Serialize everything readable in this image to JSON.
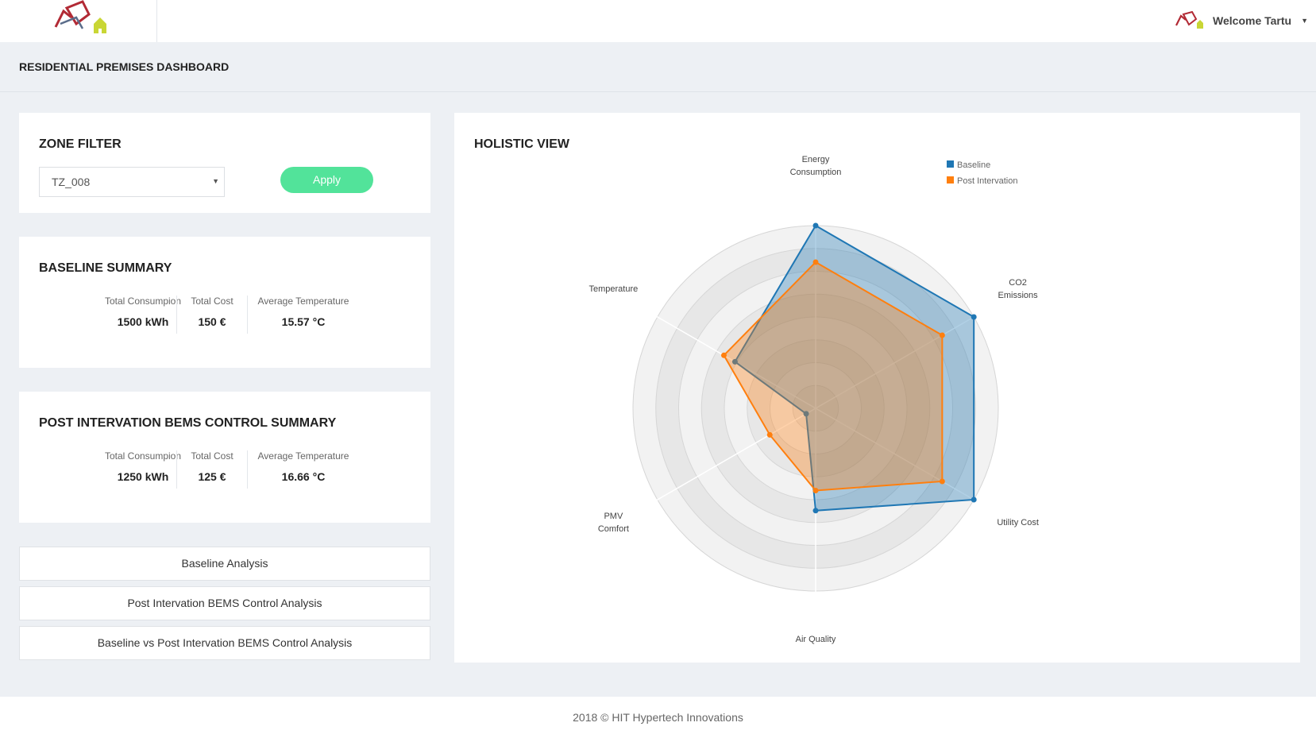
{
  "header": {
    "logo_alt": "logo",
    "user_greeting": "Welcome Tartu"
  },
  "page": {
    "title": "RESIDENTIAL PREMISES DASHBOARD"
  },
  "zone_filter": {
    "title": "ZONE FILTER",
    "selected_zone": "TZ_008",
    "apply_label": "Apply"
  },
  "baseline_summary": {
    "title": "BASELINE SUMMARY",
    "stats": [
      {
        "label": "Total Consumpion",
        "value": "1500 kWh"
      },
      {
        "label": "Total Cost",
        "value": "150 €"
      },
      {
        "label": "Average Temperature",
        "value": "15.57 °C"
      }
    ]
  },
  "post_summary": {
    "title": "POST INTERVATION BEMS CONTROL SUMMARY",
    "stats": [
      {
        "label": "Total Consumpion",
        "value": "1250 kWh"
      },
      {
        "label": "Total Cost",
        "value": "125 €"
      },
      {
        "label": "Average Temperature",
        "value": "16.66 °C"
      }
    ]
  },
  "nav_buttons": [
    "Baseline Analysis",
    "Post Intervation BEMS Control Analysis",
    "Baseline vs Post Intervation BEMS Control Analysis"
  ],
  "holistic": {
    "title": "HOLISTIC VIEW"
  },
  "chart_data": {
    "type": "radar",
    "axes": [
      [
        "Energy",
        "Consumption"
      ],
      [
        "CO2",
        "Emissions"
      ],
      [
        "Utility Cost"
      ],
      [
        "Air Quality"
      ],
      [
        "PMV",
        "Comfort"
      ],
      [
        "Temperature"
      ]
    ],
    "series": [
      {
        "name": "Baseline",
        "color": "#1f77b4",
        "values": [
          100,
          100,
          100,
          56,
          6,
          51
        ]
      },
      {
        "name": "Post Intervation",
        "color": "#ff7f0e",
        "values": [
          80,
          80,
          80,
          45,
          29,
          58
        ]
      }
    ],
    "range": [
      0,
      100
    ],
    "legend_position": "top-right",
    "grid": true
  },
  "footer": {
    "text": "2018 © HIT Hypertech Innovations"
  }
}
